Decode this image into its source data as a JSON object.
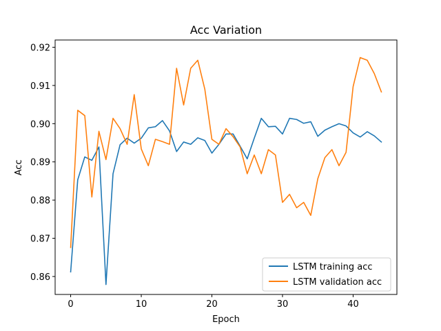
{
  "chart_data": {
    "type": "line",
    "title": "Acc Variation",
    "xlabel": "Epoch",
    "ylabel": "Acc",
    "xlim": [
      -2.2,
      46.2
    ],
    "ylim": [
      0.8553,
      0.9219
    ],
    "xticks": [
      0,
      10,
      20,
      30,
      40
    ],
    "yticks": [
      0.86,
      0.87,
      0.88,
      0.89,
      0.9,
      0.91,
      0.92
    ],
    "ytick_labels": [
      "0.86",
      "0.87",
      "0.88",
      "0.89",
      "0.90",
      "0.91",
      "0.92"
    ],
    "grid": false,
    "legend_position": "lower-right",
    "x": [
      0,
      1,
      2,
      3,
      4,
      5,
      6,
      7,
      8,
      9,
      10,
      11,
      12,
      13,
      14,
      15,
      16,
      17,
      18,
      19,
      20,
      21,
      22,
      23,
      24,
      25,
      26,
      27,
      28,
      29,
      30,
      31,
      32,
      33,
      34,
      35,
      36,
      37,
      38,
      39,
      40,
      41,
      42,
      43,
      44
    ],
    "series": [
      {
        "name": "LSTM training acc",
        "color": "#1f77b4",
        "values": [
          0.8612,
          0.8853,
          0.8913,
          0.8904,
          0.8939,
          0.8579,
          0.8869,
          0.8945,
          0.8962,
          0.8949,
          0.8962,
          0.8989,
          0.8992,
          0.9008,
          0.8981,
          0.8927,
          0.8952,
          0.8946,
          0.8963,
          0.8956,
          0.8923,
          0.8946,
          0.8973,
          0.8973,
          0.8941,
          0.8908,
          0.8962,
          0.9014,
          0.8992,
          0.8993,
          0.8973,
          0.9014,
          0.9011,
          0.9001,
          0.9005,
          0.8967,
          0.8983,
          0.8992,
          0.9,
          0.8994,
          0.8976,
          0.8965,
          0.8979,
          0.8968,
          0.8952
        ]
      },
      {
        "name": "LSTM validation acc",
        "color": "#ff7f0e",
        "values": [
          0.8676,
          0.9035,
          0.9021,
          0.8808,
          0.898,
          0.8906,
          0.9014,
          0.8987,
          0.8946,
          0.9076,
          0.8934,
          0.889,
          0.8959,
          0.8953,
          0.8946,
          0.9145,
          0.9049,
          0.9145,
          0.9166,
          0.909,
          0.8959,
          0.8946,
          0.8987,
          0.8966,
          0.8939,
          0.8869,
          0.8918,
          0.8869,
          0.8932,
          0.8918,
          0.8794,
          0.8815,
          0.878,
          0.8794,
          0.876,
          0.8856,
          0.8911,
          0.8932,
          0.889,
          0.8925,
          0.9097,
          0.9173,
          0.9166,
          0.9131,
          0.9083
        ]
      }
    ]
  }
}
